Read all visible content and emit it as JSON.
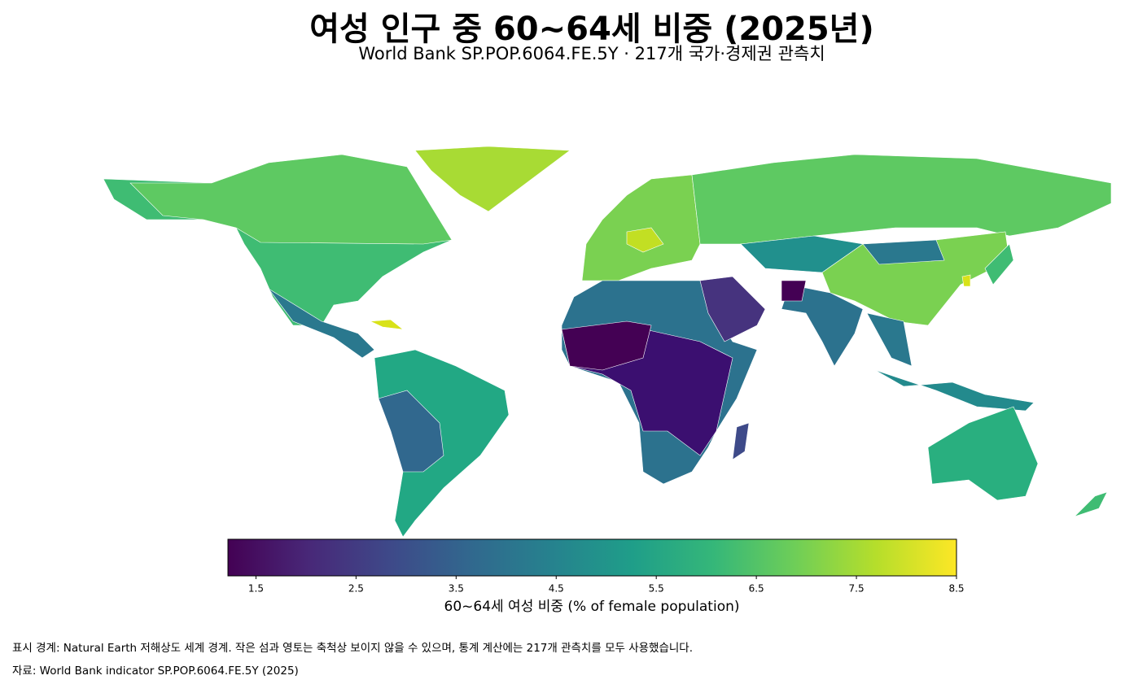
{
  "chart_data": {
    "type": "choropleth",
    "title": "여성 인구 중 60~64세 비중 (2025년)",
    "subtitle": "World Bank SP.POP.6064.FE.5Y · 217개 국가·경제권 관측치",
    "colorbar_label": "60~64세 여성 비중 (% of female population)",
    "colormap": "viridis",
    "clim": [
      1.22,
      8.5
    ],
    "ticks": [
      1.5,
      2.5,
      3.5,
      4.5,
      5.5,
      6.5,
      7.5,
      8.5
    ],
    "notes": [
      "표시 경계: Natural Earth 저해상도 세계 경계. 작은 섬과 영토는 축척상 보이지 않을 수 있으며, 통계 계산에는 217개 관측치를 모두 사용했습니다.",
      "자료: World Bank indicator SP.POP.6064.FE.5Y (2025)"
    ]
  }
}
